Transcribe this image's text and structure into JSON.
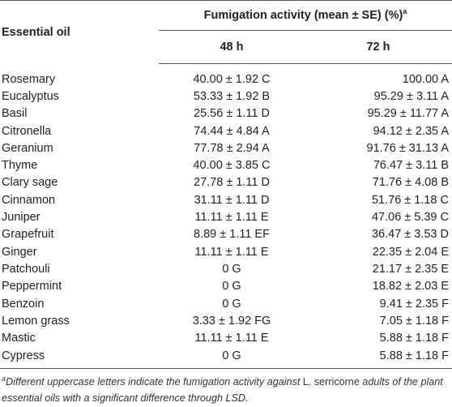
{
  "table": {
    "header_col1": "Essential oil",
    "header_group": "Fumigation activity (mean ± SE) (%)",
    "header_group_sup": "a",
    "sub_col2": "48 h",
    "sub_col3": "72 h",
    "rows": [
      {
        "oil": "Rosemary",
        "h48": "40.00 ± 1.92 C",
        "h72": "100.00 A"
      },
      {
        "oil": "Eucalyptus",
        "h48": "53.33 ± 1.92 B",
        "h72": "95.29 ± 3.11 A"
      },
      {
        "oil": "Basil",
        "h48": "25.56 ± 1.11 D",
        "h72": "95.29 ± 11.77 A"
      },
      {
        "oil": "Citronella",
        "h48": "74.44 ± 4.84 A",
        "h72": "94.12 ± 2.35 A"
      },
      {
        "oil": "Geranium",
        "h48": "77.78 ± 2.94 A",
        "h72": "91.76 ± 31.13 A"
      },
      {
        "oil": "Thyme",
        "h48": "40.00 ± 3.85 C",
        "h72": "76.47 ± 3.11 B"
      },
      {
        "oil": "Clary sage",
        "h48": "27.78 ± 1.11 D",
        "h72": "71.76 ± 4.08 B"
      },
      {
        "oil": "Cinnamon",
        "h48": "31.11 ± 1.11 D",
        "h72": "51.76 ± 1.18 C"
      },
      {
        "oil": "Juniper",
        "h48": "11.11 ± 1.11 E",
        "h72": "47.06 ± 5.39 C"
      },
      {
        "oil": "Grapefruit",
        "h48": "8.89 ± 1.11 EF",
        "h72": "36.47 ± 3.53 D"
      },
      {
        "oil": "Ginger",
        "h48": "11.11 ± 1.11 E",
        "h72": "22.35 ± 2.04 E"
      },
      {
        "oil": "Patchouli",
        "h48": "0 G",
        "h72": "21.17 ± 2.35 E"
      },
      {
        "oil": "Peppermint",
        "h48": "0 G",
        "h72": "18.82 ± 2.03 E"
      },
      {
        "oil": "Benzoin",
        "h48": "0 G",
        "h72": "9.41 ± 2.35 F"
      },
      {
        "oil": "Lemon grass",
        "h48": "3.33 ± 1.92 FG",
        "h72": "7.05 ± 1.18 F"
      },
      {
        "oil": "Mastic",
        "h48": "11.11 ± 1.11 E",
        "h72": "5.88 ± 1.18 F"
      },
      {
        "oil": "Cypress",
        "h48": "0 G",
        "h72": "5.88 ± 1.18 F"
      }
    ]
  },
  "footnote": {
    "sup": "a",
    "part1": "Different uppercase letters indicate the fumigation activity against ",
    "species": "L. serricorne",
    "part2": " adults of the plant essential oils with a significant difference through LSD."
  }
}
